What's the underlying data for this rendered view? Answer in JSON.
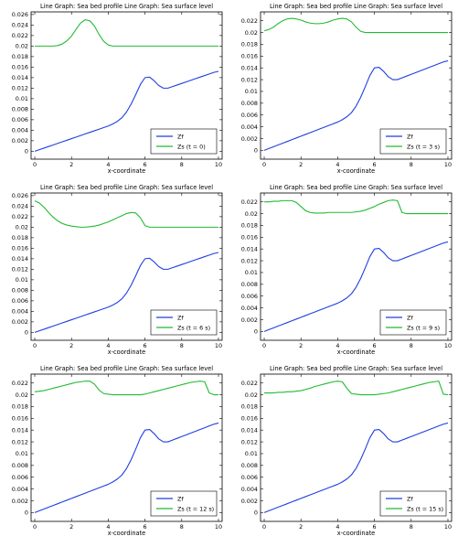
{
  "shared": {
    "x": [
      0,
      0.25,
      0.5,
      0.75,
      1,
      1.25,
      1.5,
      1.75,
      2,
      2.25,
      2.5,
      2.75,
      3,
      3.25,
      3.5,
      3.75,
      4,
      4.25,
      4.5,
      4.75,
      5,
      5.25,
      5.5,
      5.75,
      6,
      6.25,
      6.5,
      6.75,
      7,
      7.25,
      7.5,
      7.75,
      8,
      8.25,
      8.5,
      8.75,
      9,
      9.25,
      9.5,
      9.75,
      10
    ],
    "zf": [
      0,
      0.0003,
      0.0006,
      0.0009,
      0.0012,
      0.0015,
      0.0018,
      0.0021,
      0.0024,
      0.0027,
      0.003,
      0.0033,
      0.0036,
      0.0039,
      0.0042,
      0.0045,
      0.0048,
      0.0052,
      0.0057,
      0.0064,
      0.0075,
      0.009,
      0.0108,
      0.0127,
      0.014,
      0.0141,
      0.0134,
      0.0125,
      0.012,
      0.012,
      0.0123,
      0.0126,
      0.0129,
      0.0132,
      0.0135,
      0.0138,
      0.0141,
      0.0144,
      0.0147,
      0.015,
      0.0152
    ]
  },
  "chart_data": [
    {
      "type": "line",
      "title": "Line Graph: Sea bed profile  Line Graph: Sea surface level",
      "xlabel": "x-coordinate",
      "ylabel": "",
      "xlim": [
        -0.2,
        10.2
      ],
      "ylim": [
        -0.0015,
        0.0265
      ],
      "xticks": [
        "0",
        "2",
        "4",
        "6",
        "8",
        "10"
      ],
      "yticks": [
        "0",
        "0.002",
        "0.004",
        "0.006",
        "0.008",
        "0.01",
        "0.012",
        "0.014",
        "0.016",
        "0.018",
        "0.02",
        "0.022",
        "0.024",
        "0.026"
      ],
      "grid": false,
      "legend_position": "bottom-right",
      "series": [
        {
          "name": "Zf",
          "color": "#1f3fdf",
          "values": "shared"
        },
        {
          "name": "Zs (t = 0)",
          "color": "#22bb33",
          "values": [
            0.02,
            0.02,
            0.02,
            0.02,
            0.02,
            0.0201,
            0.0204,
            0.021,
            0.0219,
            0.0232,
            0.0244,
            0.025,
            0.0248,
            0.0238,
            0.0222,
            0.0209,
            0.0202,
            0.02,
            0.02,
            0.02,
            0.02,
            0.02,
            0.02,
            0.02,
            0.02,
            0.02,
            0.02,
            0.02,
            0.02,
            0.02,
            0.02,
            0.02,
            0.02,
            0.02,
            0.02,
            0.02,
            0.02,
            0.02,
            0.02,
            0.02,
            0.02
          ]
        }
      ]
    },
    {
      "type": "line",
      "title": "Line Graph: Sea bed profile  Line Graph: Sea surface level",
      "xlabel": "x-coordinate",
      "ylabel": "",
      "xlim": [
        -0.2,
        10.2
      ],
      "ylim": [
        -0.0015,
        0.0235
      ],
      "xticks": [
        "0",
        "2",
        "4",
        "6",
        "8",
        "10"
      ],
      "yticks": [
        "0",
        "0.002",
        "0.004",
        "0.006",
        "0.008",
        "0.01",
        "0.012",
        "0.014",
        "0.016",
        "0.018",
        "0.02",
        "0.022"
      ],
      "grid": false,
      "legend_position": "bottom-right",
      "series": [
        {
          "name": "Zf",
          "color": "#1f3fdf",
          "values": "shared"
        },
        {
          "name": "Zs (t = 3 s)",
          "color": "#22bb33",
          "values": [
            0.0203,
            0.0205,
            0.0209,
            0.0215,
            0.022,
            0.0223,
            0.0224,
            0.0223,
            0.0221,
            0.0218,
            0.0216,
            0.0215,
            0.0215,
            0.0216,
            0.0218,
            0.0221,
            0.0223,
            0.0224,
            0.0223,
            0.0218,
            0.0209,
            0.0202,
            0.02,
            0.02,
            0.02,
            0.02,
            0.02,
            0.02,
            0.02,
            0.02,
            0.02,
            0.02,
            0.02,
            0.02,
            0.02,
            0.02,
            0.02,
            0.02,
            0.02,
            0.02,
            0.02
          ]
        }
      ]
    },
    {
      "type": "line",
      "title": "Line Graph: Sea bed profile  Line Graph: Sea surface level",
      "xlabel": "x-coordinate",
      "ylabel": "",
      "xlim": [
        -0.2,
        10.2
      ],
      "ylim": [
        -0.0015,
        0.0265
      ],
      "xticks": [
        "0",
        "2",
        "4",
        "6",
        "8",
        "10"
      ],
      "yticks": [
        "0",
        "0.002",
        "0.004",
        "0.006",
        "0.008",
        "0.01",
        "0.012",
        "0.014",
        "0.016",
        "0.018",
        "0.02",
        "0.022",
        "0.024",
        "0.026"
      ],
      "grid": false,
      "legend_position": "bottom-right",
      "series": [
        {
          "name": "Zf",
          "color": "#1f3fdf",
          "values": "shared"
        },
        {
          "name": "Zs (t = 6 s)",
          "color": "#22bb33",
          "values": [
            0.025,
            0.0246,
            0.0238,
            0.0228,
            0.0219,
            0.0212,
            0.0207,
            0.0204,
            0.0202,
            0.0201,
            0.02,
            0.02,
            0.0201,
            0.0202,
            0.0204,
            0.0207,
            0.021,
            0.0214,
            0.0218,
            0.0222,
            0.0226,
            0.0228,
            0.0227,
            0.0218,
            0.0203,
            0.02,
            0.02,
            0.02,
            0.02,
            0.02,
            0.02,
            0.02,
            0.02,
            0.02,
            0.02,
            0.02,
            0.02,
            0.02,
            0.02,
            0.02,
            0.02
          ]
        }
      ]
    },
    {
      "type": "line",
      "title": "Line Graph: Sea bed profile  Line Graph: Sea surface level",
      "xlabel": "x-coordinate",
      "ylabel": "",
      "xlim": [
        -0.2,
        10.2
      ],
      "ylim": [
        -0.0015,
        0.0235
      ],
      "xticks": [
        "0",
        "2",
        "4",
        "6",
        "8",
        "10"
      ],
      "yticks": [
        "0",
        "0.002",
        "0.004",
        "0.006",
        "0.008",
        "0.01",
        "0.012",
        "0.014",
        "0.016",
        "0.018",
        "0.02",
        "0.022"
      ],
      "grid": false,
      "legend_position": "bottom-right",
      "series": [
        {
          "name": "Zf",
          "color": "#1f3fdf",
          "values": "shared"
        },
        {
          "name": "Zs (t = 9 s)",
          "color": "#22bb33",
          "values": [
            0.022,
            0.022,
            0.0221,
            0.0221,
            0.0222,
            0.0222,
            0.0222,
            0.0219,
            0.0212,
            0.0205,
            0.0202,
            0.0201,
            0.0201,
            0.0201,
            0.0202,
            0.0202,
            0.0202,
            0.0202,
            0.0202,
            0.0202,
            0.0203,
            0.0204,
            0.0206,
            0.0209,
            0.0212,
            0.0216,
            0.0219,
            0.0222,
            0.0223,
            0.0222,
            0.0202,
            0.02,
            0.02,
            0.02,
            0.02,
            0.02,
            0.02,
            0.02,
            0.02,
            0.02,
            0.02
          ]
        }
      ]
    },
    {
      "type": "line",
      "title": "Line Graph: Sea bed profile  Line Graph: Sea surface level",
      "xlabel": "x-coordinate",
      "ylabel": "",
      "xlim": [
        -0.2,
        10.2
      ],
      "ylim": [
        -0.0015,
        0.0235
      ],
      "xticks": [
        "0",
        "2",
        "4",
        "6",
        "8",
        "10"
      ],
      "yticks": [
        "0",
        "0.002",
        "0.004",
        "0.006",
        "0.008",
        "0.01",
        "0.012",
        "0.014",
        "0.016",
        "0.018",
        "0.02",
        "0.022"
      ],
      "grid": false,
      "legend_position": "bottom-right",
      "series": [
        {
          "name": "Zf",
          "color": "#1f3fdf",
          "values": "shared"
        },
        {
          "name": "Zs (t = 12 s)",
          "color": "#22bb33",
          "values": [
            0.0205,
            0.0206,
            0.0207,
            0.0209,
            0.0211,
            0.0213,
            0.0215,
            0.0217,
            0.0219,
            0.0221,
            0.0222,
            0.0223,
            0.0223,
            0.0218,
            0.0208,
            0.0202,
            0.0201,
            0.02,
            0.02,
            0.02,
            0.02,
            0.02,
            0.02,
            0.02,
            0.0201,
            0.0203,
            0.0205,
            0.0207,
            0.0209,
            0.0211,
            0.0213,
            0.0215,
            0.0217,
            0.0219,
            0.0221,
            0.0222,
            0.0223,
            0.0222,
            0.0203,
            0.02,
            0.02
          ]
        }
      ]
    },
    {
      "type": "line",
      "title": "Line Graph: Sea bed profile  Line Graph: Sea surface level",
      "xlabel": "x-coordinate",
      "ylabel": "",
      "xlim": [
        -0.2,
        10.2
      ],
      "ylim": [
        -0.0015,
        0.0235
      ],
      "xticks": [
        "0",
        "2",
        "4",
        "6",
        "8",
        "10"
      ],
      "yticks": [
        "0",
        "0.002",
        "0.004",
        "0.006",
        "0.008",
        "0.01",
        "0.012",
        "0.014",
        "0.016",
        "0.018",
        "0.02",
        "0.022"
      ],
      "grid": false,
      "legend_position": "bottom-right",
      "series": [
        {
          "name": "Zf",
          "color": "#1f3fdf",
          "values": "shared"
        },
        {
          "name": "Zs (t = 15 s)",
          "color": "#22bb33",
          "values": [
            0.0203,
            0.0203,
            0.0203,
            0.0204,
            0.0204,
            0.0205,
            0.0205,
            0.0206,
            0.0207,
            0.0209,
            0.0211,
            0.0214,
            0.0216,
            0.0218,
            0.022,
            0.0222,
            0.0223,
            0.0222,
            0.0211,
            0.0202,
            0.0201,
            0.02,
            0.02,
            0.02,
            0.02,
            0.0201,
            0.0202,
            0.0203,
            0.0205,
            0.0207,
            0.0209,
            0.0211,
            0.0213,
            0.0215,
            0.0217,
            0.0219,
            0.0221,
            0.0222,
            0.0223,
            0.0201,
            0.02
          ]
        }
      ]
    }
  ]
}
